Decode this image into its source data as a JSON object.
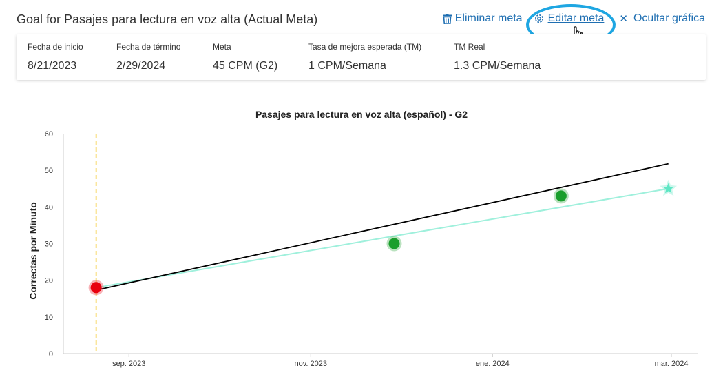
{
  "header": {
    "title": "Goal for Pasajes para lectura en voz alta (Actual Meta)",
    "delete_label": "Eliminar meta",
    "edit_label": "Editar meta",
    "hide_label": "Ocultar gráfica"
  },
  "summary": {
    "fields": [
      {
        "label": "Fecha de inicio",
        "value": "8/21/2023"
      },
      {
        "label": "Fecha de término",
        "value": "2/29/2024"
      },
      {
        "label": "Meta",
        "value": "45 CPM (G2)"
      },
      {
        "label": "Tasa de mejora esperada (TM)",
        "value": "1 CPM/Semana"
      },
      {
        "label": "TM Real",
        "value": "1.3 CPM/Semana"
      }
    ]
  },
  "colors": {
    "accent": "#1f6fb2",
    "highlight": "#1ea6e2",
    "baseline_point": "#e8000f",
    "data_point": "#1a9e2c",
    "goal_line": "#9ff0dc",
    "goal_star": "#5ee6c4",
    "trend_line": "#000000",
    "start_marker": "#f5c518"
  },
  "chart_data": {
    "type": "line",
    "title": "Pasajes para lectura en voz alta (español) - G2",
    "ylabel": "Correctas por Minuto",
    "xlabel": "",
    "ylim": [
      0,
      60
    ],
    "yticks": [
      0,
      10,
      20,
      30,
      40,
      50,
      60
    ],
    "xlim": [
      "2023-08-10",
      "2024-03-10"
    ],
    "xticks": [
      {
        "date": "2023-09-01",
        "label": "sep. 2023"
      },
      {
        "date": "2023-11-01",
        "label": "nov. 2023"
      },
      {
        "date": "2024-01-01",
        "label": "ene. 2024"
      },
      {
        "date": "2024-03-01",
        "label": "mar. 2024"
      }
    ],
    "grid": false,
    "start_marker": {
      "date": "2023-08-21"
    },
    "baseline": {
      "date": "2023-08-21",
      "value": 18
    },
    "points": [
      {
        "date": "2023-11-29",
        "value": 30
      },
      {
        "date": "2024-01-24",
        "value": 43
      }
    ],
    "goal_line": [
      {
        "date": "2023-08-21",
        "value": 18
      },
      {
        "date": "2024-02-29",
        "value": 45
      }
    ],
    "goal_point": {
      "date": "2024-02-29",
      "value": 45
    },
    "trend_line": [
      {
        "date": "2023-08-21",
        "value": 17.3
      },
      {
        "date": "2024-02-29",
        "value": 51.8
      }
    ]
  }
}
